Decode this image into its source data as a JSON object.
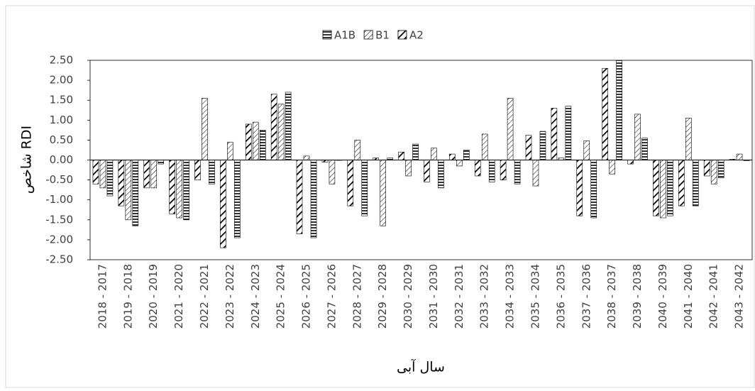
{
  "chart_data": {
    "type": "bar",
    "legend": "top",
    "x_label": "سال آبی",
    "y_label": "شاخص RDI",
    "categories": [
      "2018 - 2017",
      "2019 - 2018",
      "2020 - 2019",
      "2021 - 2020",
      "2022 - 2021",
      "2023 - 2022",
      "2024 - 2023",
      "2025 - 2024",
      "2026 - 2025",
      "2027 - 2026",
      "2028 - 2027",
      "2029 - 2028",
      "2030 - 2029",
      "2031 - 2030",
      "2032 - 2031",
      "2033 - 2032",
      "2034 - 2033",
      "2035 - 2034",
      "2036 - 2035",
      "2037 - 2036",
      "2038 - 2037",
      "2039 - 2038",
      "2040 - 2039",
      "2041 - 2040",
      "2042 - 2041",
      "2043 - 2042"
    ],
    "series": [
      {
        "name": "A1B",
        "color": "#000000",
        "values": [
          -0.9,
          -1.65,
          -0.1,
          -1.5,
          -0.6,
          -1.95,
          0.75,
          1.7,
          -1.95,
          0,
          -1.4,
          0.05,
          0.4,
          -0.7,
          0.25,
          -0.55,
          -0.6,
          0.72,
          1.35,
          -1.45,
          2.5,
          0.55,
          -1.4,
          -1.15,
          -0.45,
          -0.02
        ]
      },
      {
        "name": "B1",
        "color": "#000000",
        "values": [
          -0.7,
          -1.5,
          -0.7,
          -1.45,
          1.55,
          0.45,
          0.95,
          1.4,
          0.1,
          -0.6,
          0.5,
          -1.65,
          -0.4,
          0.3,
          -0.15,
          0.65,
          1.55,
          -0.65,
          0.05,
          0.48,
          -0.35,
          1.15,
          -1.45,
          1.05,
          -0.6,
          0.15
        ]
      },
      {
        "name": "A2",
        "color": "#000000",
        "values": [
          -0.6,
          -1.15,
          -0.7,
          -1.35,
          -0.5,
          -2.2,
          0.9,
          1.65,
          -1.85,
          -0.05,
          -1.15,
          0.05,
          0.2,
          -0.55,
          0.15,
          -0.4,
          -0.5,
          0.62,
          1.3,
          -1.4,
          2.3,
          -0.1,
          -1.4,
          -1.15,
          -0.4,
          0.02
        ]
      }
    ],
    "ylim": [
      -2.5,
      2.5
    ],
    "yticks": [
      {
        "value": -2.5,
        "label": "-2.50"
      },
      {
        "value": -2,
        "label": "-2.00"
      },
      {
        "value": -1.5,
        "label": "-1.50"
      },
      {
        "value": -1,
        "label": "-1.00"
      },
      {
        "value": -0.5,
        "label": "-0.50"
      },
      {
        "value": 0,
        "label": "0.00"
      },
      {
        "value": 0.5,
        "label": "0.50"
      },
      {
        "value": 1,
        "label": "1.00"
      },
      {
        "value": 1.5,
        "label": "1.50"
      },
      {
        "value": 2,
        "label": "2.00"
      },
      {
        "value": 2.5,
        "label": "2.50"
      }
    ]
  }
}
